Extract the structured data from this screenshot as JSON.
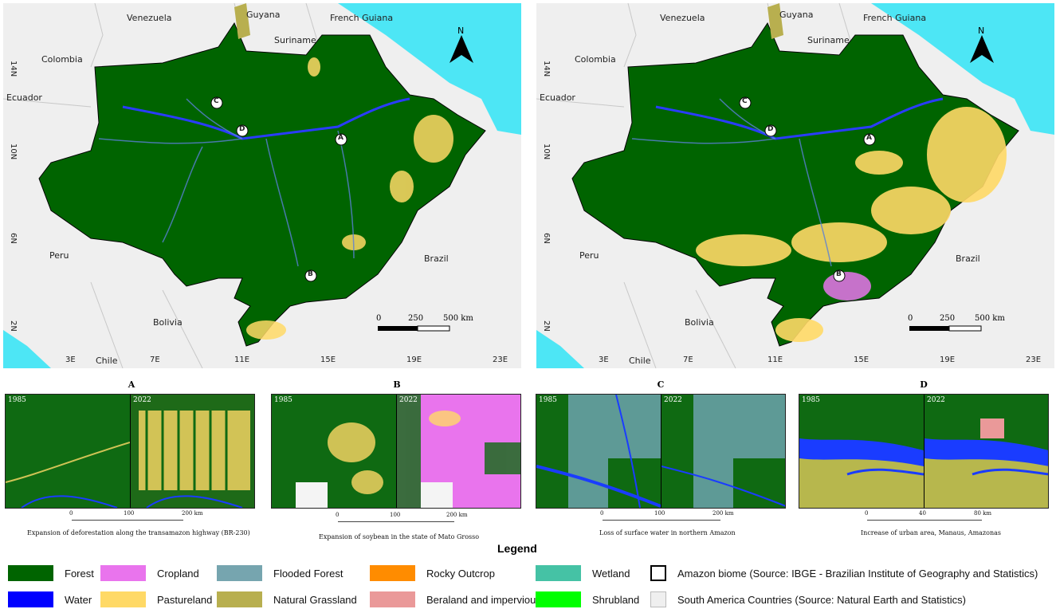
{
  "legend": {
    "title": "Legend",
    "items": [
      {
        "label": "Forest",
        "color": "#006400"
      },
      {
        "label": "Water",
        "color": "#0000ff"
      },
      {
        "label": "Cropland",
        "color": "#e974ed"
      },
      {
        "label": "Pastureland",
        "color": "#ffd966"
      },
      {
        "label": "Flooded Forest",
        "color": "#76a5af"
      },
      {
        "label": "Natural Grassland",
        "color": "#b8af4f"
      },
      {
        "label": "Rocky Outcrop",
        "color": "#ff8c00"
      },
      {
        "label": "Beraland and impervious",
        "color": "#ea9999"
      },
      {
        "label": "Wetland",
        "color": "#45c2a5"
      },
      {
        "label": "Shrubland",
        "color": "#00ff00"
      },
      {
        "label": "Amazon biome (Source: IBGE - Brazilian Institute of Geography and Statistics)",
        "color": "#ffffff"
      },
      {
        "label": "South America Countries (Source: Natural Earth and Statistics)",
        "color": "#efefef"
      }
    ]
  },
  "maps": {
    "countries": [
      "Venezuela",
      "Guyana",
      "French Guiana",
      "Suriname",
      "Colombia",
      "Ecuador",
      "Peru",
      "Brazil",
      "Bolivia",
      "Chile"
    ],
    "lon_ticks": [
      "3E",
      "7E",
      "11E",
      "15E",
      "19E",
      "23E"
    ],
    "lat_ticks": [
      "14N",
      "10N",
      "6N",
      "2N"
    ],
    "north": "N",
    "scale": [
      "0",
      "250",
      "500 km"
    ],
    "markers": [
      "A",
      "B",
      "C",
      "D"
    ]
  },
  "insets": [
    {
      "letter": "A",
      "year1": "1985",
      "year2": "2022",
      "scale": [
        "0",
        "100",
        "200 km"
      ],
      "caption": "Expansion of deforestation along the transamazon highway (BR-230)"
    },
    {
      "letter": "B",
      "year1": "1985",
      "year2": "2022",
      "scale": [
        "0",
        "100",
        "200 km"
      ],
      "caption": "Expansion of soybean in the state of Mato Grosso"
    },
    {
      "letter": "C",
      "year1": "1985",
      "year2": "2022",
      "scale": [
        "0",
        "100",
        "200 km"
      ],
      "caption": "Loss of surface water in northern Amazon"
    },
    {
      "letter": "D",
      "year1": "1985",
      "year2": "2022",
      "scale": [
        "0",
        "40",
        "80 km"
      ],
      "caption": "Increase of urban area, Manaus, Amazonas"
    }
  ]
}
